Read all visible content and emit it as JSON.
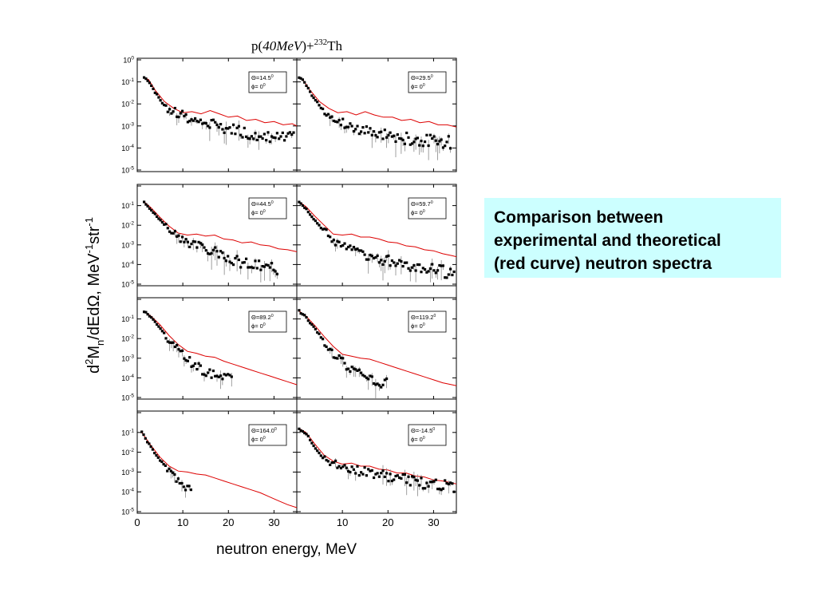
{
  "figure": {
    "title_parts": {
      "a": "p(",
      "b": "40MeV",
      "c": ")+",
      "sup": "232",
      "d": "Th"
    },
    "ylabel_parts": [
      "d",
      "2",
      "M",
      "n",
      "/dEdΩ, MeV",
      "-1",
      "str",
      "-1"
    ],
    "xlabel": "neutron energy, MeV",
    "y_ticks": [
      {
        "base": "10",
        "exp": "0",
        "v": 0
      },
      {
        "base": "10",
        "exp": "-1",
        "v": -1
      },
      {
        "base": "10",
        "exp": "-2",
        "v": -2
      },
      {
        "base": "10",
        "exp": "-3",
        "v": -3
      },
      {
        "base": "10",
        "exp": "-4",
        "v": -4
      },
      {
        "base": "10",
        "exp": "-5",
        "v": -5
      }
    ],
    "x_ticks_left": [
      "0",
      "10",
      "20",
      "30"
    ],
    "x_ticks_right": [
      "10",
      "20",
      "30"
    ],
    "colors": {
      "theory": "#dd0000",
      "data": "#000000",
      "errorbar": "#888888"
    }
  },
  "caption": {
    "text": "Comparison between\nexperimental and theoretical\n(red curve) neutron spectra"
  },
  "chart_data": {
    "type": "scatter",
    "title": "p(40MeV)+232Th",
    "xlabel": "neutron energy, MeV",
    "ylabel": "d2Mn/dEdΩ, MeV-1str-1",
    "xlim": [
      0,
      35
    ],
    "ylim_log10": [
      -5,
      0
    ],
    "y_scale": "log",
    "series": [
      {
        "name": "experimental",
        "style": "black squares with error bars"
      },
      {
        "name": "theoretical",
        "style": "red curve"
      }
    ],
    "panels": [
      {
        "angle": "Θ=14.5",
        "theta_sup": "0",
        "phi": "ϕ= 0",
        "phi_sup": "0",
        "theory": [
          [
            1.5,
            -0.8
          ],
          [
            2.5,
            -0.9
          ],
          [
            4,
            -1.4
          ],
          [
            6,
            -1.9
          ],
          [
            8,
            -2.2
          ],
          [
            10,
            -2.4
          ],
          [
            12,
            -2.35
          ],
          [
            14,
            -2.45
          ],
          [
            16,
            -2.3
          ],
          [
            18,
            -2.45
          ],
          [
            20,
            -2.6
          ],
          [
            22,
            -2.55
          ],
          [
            24,
            -2.75
          ],
          [
            26,
            -2.7
          ],
          [
            28,
            -2.85
          ],
          [
            30,
            -2.8
          ],
          [
            32,
            -2.95
          ],
          [
            34,
            -2.9
          ],
          [
            35,
            -3.0
          ]
        ],
        "exp": [
          [
            1.5,
            -0.8
          ],
          [
            2.5,
            -0.95
          ],
          [
            4,
            -1.5
          ],
          [
            6,
            -2.1
          ],
          [
            8,
            -2.35
          ],
          [
            10,
            -2.55
          ],
          [
            12,
            -2.7
          ],
          [
            14,
            -2.8
          ],
          [
            16,
            -2.9
          ],
          [
            18,
            -3.0
          ],
          [
            20,
            -3.1
          ],
          [
            22,
            -3.2
          ],
          [
            24,
            -3.3
          ],
          [
            26,
            -3.4
          ],
          [
            28,
            -3.5
          ],
          [
            30,
            -3.55
          ],
          [
            32,
            -3.6
          ],
          [
            34,
            -3.6
          ]
        ],
        "exp_end": 35
      },
      {
        "angle": "Θ=29.5",
        "theta_sup": "0",
        "phi": "ϕ= 0",
        "phi_sup": "0",
        "theory": [
          [
            0.5,
            -0.8
          ],
          [
            1.5,
            -0.95
          ],
          [
            3,
            -1.4
          ],
          [
            5,
            -1.9
          ],
          [
            7,
            -2.2
          ],
          [
            9,
            -2.4
          ],
          [
            11,
            -2.35
          ],
          [
            13,
            -2.5
          ],
          [
            15,
            -2.35
          ],
          [
            17,
            -2.5
          ],
          [
            19,
            -2.6
          ],
          [
            21,
            -2.6
          ],
          [
            23,
            -2.75
          ],
          [
            25,
            -2.7
          ],
          [
            27,
            -2.85
          ],
          [
            29,
            -2.8
          ],
          [
            31,
            -2.95
          ],
          [
            33,
            -2.95
          ],
          [
            35,
            -3.05
          ]
        ],
        "exp": [
          [
            0.5,
            -0.8
          ],
          [
            1.5,
            -0.95
          ],
          [
            3,
            -1.5
          ],
          [
            5,
            -2.1
          ],
          [
            7,
            -2.5
          ],
          [
            9,
            -2.75
          ],
          [
            11,
            -2.95
          ],
          [
            13,
            -3.1
          ],
          [
            15,
            -3.2
          ],
          [
            17,
            -3.3
          ],
          [
            19,
            -3.4
          ],
          [
            21,
            -3.5
          ],
          [
            23,
            -3.55
          ],
          [
            25,
            -3.6
          ],
          [
            27,
            -3.65
          ],
          [
            29,
            -3.7
          ],
          [
            31,
            -3.75
          ],
          [
            33,
            -3.75
          ]
        ],
        "exp_end": 35
      },
      {
        "angle": "Θ=44.5",
        "theta_sup": "0",
        "phi": "ϕ= 0",
        "phi_sup": "0",
        "theory": [
          [
            1.5,
            -0.8
          ],
          [
            3,
            -1.1
          ],
          [
            5,
            -1.6
          ],
          [
            7,
            -2.05
          ],
          [
            9,
            -2.4
          ],
          [
            11,
            -2.5
          ],
          [
            13,
            -2.45
          ],
          [
            15,
            -2.55
          ],
          [
            17,
            -2.5
          ],
          [
            19,
            -2.7
          ],
          [
            21,
            -2.75
          ],
          [
            23,
            -2.9
          ],
          [
            25,
            -2.85
          ],
          [
            27,
            -3.0
          ],
          [
            29,
            -3.05
          ],
          [
            31,
            -3.2
          ],
          [
            33,
            -3.25
          ],
          [
            35,
            -3.35
          ]
        ],
        "exp": [
          [
            1.5,
            -0.8
          ],
          [
            3,
            -1.2
          ],
          [
            5,
            -1.75
          ],
          [
            7,
            -2.2
          ],
          [
            9,
            -2.6
          ],
          [
            11,
            -2.85
          ],
          [
            13,
            -3.0
          ],
          [
            15,
            -3.2
          ],
          [
            17,
            -3.35
          ],
          [
            19,
            -3.5
          ],
          [
            21,
            -3.75
          ],
          [
            23,
            -3.9
          ],
          [
            25,
            -4.05
          ],
          [
            27,
            -4.1
          ],
          [
            29,
            -4.2
          ],
          [
            31,
            -4.3
          ]
        ],
        "exp_end": 31
      },
      {
        "angle": "Θ=59.7",
        "theta_sup": "0",
        "phi": "ϕ= 0",
        "phi_sup": "0",
        "theory": [
          [
            0.5,
            -0.8
          ],
          [
            2,
            -1.05
          ],
          [
            4,
            -1.55
          ],
          [
            6,
            -2.0
          ],
          [
            8,
            -2.45
          ],
          [
            10,
            -2.5
          ],
          [
            12,
            -2.45
          ],
          [
            14,
            -2.6
          ],
          [
            16,
            -2.6
          ],
          [
            18,
            -2.7
          ],
          [
            20,
            -2.85
          ],
          [
            22,
            -2.9
          ],
          [
            24,
            -3.05
          ],
          [
            26,
            -3.1
          ],
          [
            28,
            -3.25
          ],
          [
            30,
            -3.3
          ],
          [
            32,
            -3.45
          ],
          [
            34,
            -3.55
          ],
          [
            35,
            -3.6
          ]
        ],
        "exp": [
          [
            0.5,
            -0.8
          ],
          [
            2,
            -1.15
          ],
          [
            4,
            -1.75
          ],
          [
            6,
            -2.3
          ],
          [
            8,
            -2.75
          ],
          [
            10,
            -3.05
          ],
          [
            12,
            -3.3
          ],
          [
            14,
            -3.45
          ],
          [
            16,
            -3.6
          ],
          [
            18,
            -3.7
          ],
          [
            20,
            -3.8
          ],
          [
            22,
            -3.9
          ],
          [
            24,
            -4.0
          ],
          [
            26,
            -4.1
          ],
          [
            28,
            -4.2
          ],
          [
            30,
            -4.25
          ],
          [
            32,
            -4.35
          ],
          [
            34,
            -4.4
          ]
        ],
        "exp_end": 35
      },
      {
        "angle": "Θ=89.2",
        "theta_sup": "0",
        "phi": "ϕ= 0",
        "phi_sup": "0",
        "theory": [
          [
            1.5,
            -0.6
          ],
          [
            3,
            -0.85
          ],
          [
            5,
            -1.3
          ],
          [
            7,
            -1.85
          ],
          [
            9,
            -2.3
          ],
          [
            11,
            -2.65
          ],
          [
            13,
            -2.75
          ],
          [
            15,
            -2.9
          ],
          [
            17,
            -2.95
          ],
          [
            19,
            -3.15
          ],
          [
            21,
            -3.3
          ],
          [
            23,
            -3.45
          ],
          [
            25,
            -3.6
          ],
          [
            27,
            -3.75
          ],
          [
            29,
            -3.9
          ],
          [
            31,
            -4.05
          ],
          [
            33,
            -4.2
          ],
          [
            35,
            -4.35
          ]
        ],
        "exp": [
          [
            1.5,
            -0.6
          ],
          [
            3,
            -0.9
          ],
          [
            5,
            -1.45
          ],
          [
            7,
            -2.05
          ],
          [
            9,
            -2.6
          ],
          [
            11,
            -3.05
          ],
          [
            13,
            -3.4
          ],
          [
            15,
            -3.7
          ],
          [
            17,
            -3.85
          ],
          [
            19,
            -4.0
          ],
          [
            21,
            -4.1
          ]
        ],
        "exp_end": 21
      },
      {
        "angle": "Θ=119.2",
        "theta_sup": "0",
        "phi": "ϕ= 0",
        "phi_sup": "0",
        "theory": [
          [
            0.5,
            -0.6
          ],
          [
            2,
            -0.85
          ],
          [
            4,
            -1.35
          ],
          [
            6,
            -1.9
          ],
          [
            8,
            -2.4
          ],
          [
            10,
            -2.8
          ],
          [
            12,
            -2.9
          ],
          [
            14,
            -3.0
          ],
          [
            16,
            -3.05
          ],
          [
            18,
            -3.2
          ],
          [
            20,
            -3.35
          ],
          [
            22,
            -3.5
          ],
          [
            24,
            -3.65
          ],
          [
            26,
            -3.8
          ],
          [
            28,
            -3.95
          ],
          [
            30,
            -4.1
          ],
          [
            32,
            -4.25
          ],
          [
            34,
            -4.35
          ],
          [
            35,
            -4.4
          ]
        ],
        "exp": [
          [
            0.5,
            -0.6
          ],
          [
            2,
            -0.9
          ],
          [
            4,
            -1.5
          ],
          [
            6,
            -2.15
          ],
          [
            8,
            -2.75
          ],
          [
            10,
            -3.2
          ],
          [
            12,
            -3.55
          ],
          [
            14,
            -3.85
          ],
          [
            16,
            -4.05
          ],
          [
            18,
            -4.2
          ],
          [
            20,
            -4.3
          ]
        ],
        "exp_end": 20
      },
      {
        "angle": "Θ=164.0",
        "theta_sup": "0",
        "phi": "ϕ= 0",
        "phi_sup": "0",
        "theory": [
          [
            1,
            -1.0
          ],
          [
            3,
            -1.65
          ],
          [
            5,
            -2.25
          ],
          [
            7,
            -2.7
          ],
          [
            9,
            -2.95
          ],
          [
            11,
            -3.0
          ],
          [
            13,
            -3.1
          ],
          [
            15,
            -3.15
          ],
          [
            17,
            -3.3
          ],
          [
            19,
            -3.45
          ],
          [
            21,
            -3.6
          ],
          [
            23,
            -3.75
          ],
          [
            25,
            -3.9
          ],
          [
            27,
            -4.05
          ],
          [
            29,
            -4.25
          ],
          [
            31,
            -4.45
          ],
          [
            33,
            -4.65
          ],
          [
            35,
            -4.8
          ]
        ],
        "exp": [
          [
            1,
            -1.0
          ],
          [
            3,
            -1.75
          ],
          [
            5,
            -2.4
          ],
          [
            7,
            -2.95
          ],
          [
            9,
            -3.45
          ],
          [
            11,
            -3.75
          ]
        ],
        "exp_end": 12
      },
      {
        "angle": "Θ=-14.5",
        "theta_sup": "0",
        "phi": "ϕ= 0",
        "phi_sup": "0",
        "theory": [
          [
            0.5,
            -0.8
          ],
          [
            2,
            -1.0
          ],
          [
            4,
            -1.6
          ],
          [
            6,
            -2.15
          ],
          [
            8,
            -2.45
          ],
          [
            10,
            -2.6
          ],
          [
            12,
            -2.55
          ],
          [
            14,
            -2.7
          ],
          [
            16,
            -2.7
          ],
          [
            18,
            -2.85
          ],
          [
            20,
            -2.9
          ],
          [
            22,
            -3.05
          ],
          [
            24,
            -3.05
          ],
          [
            26,
            -3.2
          ],
          [
            28,
            -3.25
          ],
          [
            30,
            -3.4
          ],
          [
            32,
            -3.45
          ],
          [
            34,
            -3.55
          ],
          [
            35,
            -3.6
          ]
        ],
        "exp": [
          [
            0.5,
            -0.8
          ],
          [
            2,
            -1.05
          ],
          [
            4,
            -1.75
          ],
          [
            6,
            -2.35
          ],
          [
            8,
            -2.6
          ],
          [
            10,
            -2.75
          ],
          [
            12,
            -2.85
          ],
          [
            14,
            -2.95
          ],
          [
            16,
            -3.0
          ],
          [
            18,
            -3.1
          ],
          [
            20,
            -3.2
          ],
          [
            22,
            -3.3
          ],
          [
            24,
            -3.4
          ],
          [
            26,
            -3.45
          ],
          [
            28,
            -3.55
          ],
          [
            30,
            -3.6
          ],
          [
            32,
            -3.7
          ],
          [
            34,
            -3.75
          ]
        ],
        "exp_end": 35
      }
    ]
  }
}
